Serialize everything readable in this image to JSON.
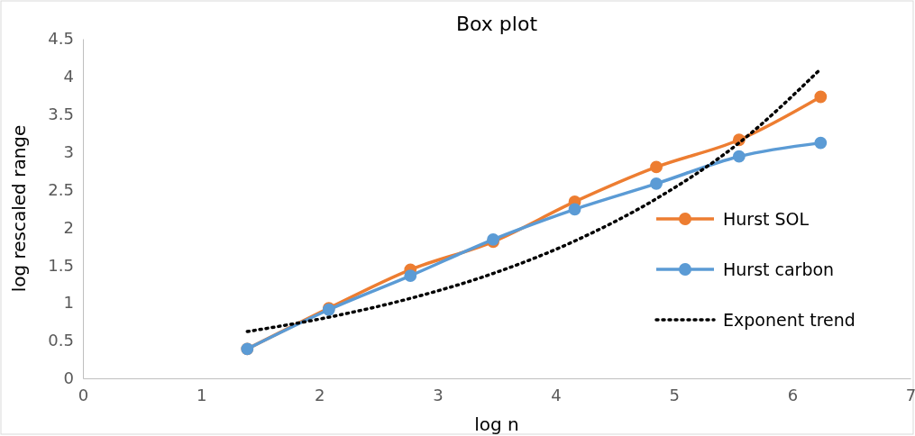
{
  "chart_data": {
    "type": "line",
    "title": "Box plot",
    "xlabel": "log n",
    "ylabel": "log rescaled range",
    "xlim": [
      0,
      7
    ],
    "xticks": [
      0,
      1,
      2,
      3,
      4,
      5,
      6,
      7
    ],
    "ylim": [
      0,
      4.5
    ],
    "yticks": [
      0,
      0.5,
      1,
      1.5,
      2,
      2.5,
      3,
      3.5,
      4,
      4.5
    ],
    "x": [
      1.39,
      2.08,
      2.77,
      3.47,
      4.16,
      4.85,
      5.55,
      6.24
    ],
    "series": [
      {
        "name": "Hurst SOL",
        "color": "#ed7d31",
        "values": [
          0.39,
          0.93,
          1.44,
          1.81,
          2.34,
          2.8,
          3.16,
          3.73
        ]
      },
      {
        "name": "Hurst carbon",
        "color": "#5b9bd5",
        "values": [
          0.39,
          0.91,
          1.36,
          1.84,
          2.24,
          2.58,
          2.94,
          3.12
        ]
      },
      {
        "name": "Exponent trend",
        "color": "#000000",
        "type": "line",
        "line_style": "dotted",
        "marker": "none",
        "x": [
          1.39,
          2.08,
          2.77,
          3.47,
          4.16,
          4.85,
          5.55,
          6.24
        ],
        "values": [
          0.62,
          0.81,
          1.06,
          1.39,
          1.82,
          2.38,
          3.12,
          4.1
        ]
      }
    ],
    "marker": "circle",
    "grid": false,
    "legend": "right"
  }
}
